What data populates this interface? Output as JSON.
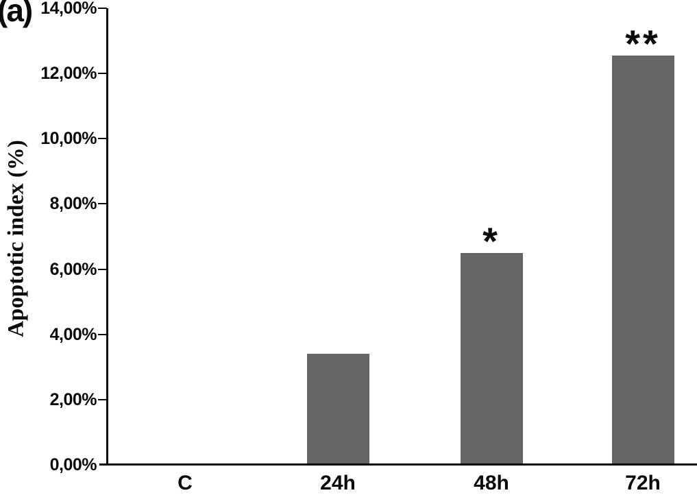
{
  "figure": {
    "panel_label": "(a)",
    "background": "#ffffff"
  },
  "chart_data": {
    "type": "bar",
    "categories": [
      "C",
      "24h",
      "48h",
      "72h"
    ],
    "values": [
      0,
      3.4,
      6.5,
      12.55
    ],
    "bar_annotations": [
      "",
      "",
      "*",
      "**"
    ],
    "title": "",
    "xlabel": "",
    "ylabel": "Apoptotic index (%)",
    "ylim": [
      0,
      14
    ],
    "ytick_values": [
      0,
      2,
      4,
      6,
      8,
      10,
      12,
      14
    ],
    "ytick_labels": [
      "0,00%",
      "2,00%",
      "4,00%",
      "6,00%",
      "8,00%",
      "10,00%",
      "12,00%",
      "14,00%"
    ],
    "grid": false,
    "legend": "none",
    "bar_color": "#656565",
    "axis_color": "#0a0a0a",
    "text_color": "#0a0a0a"
  }
}
